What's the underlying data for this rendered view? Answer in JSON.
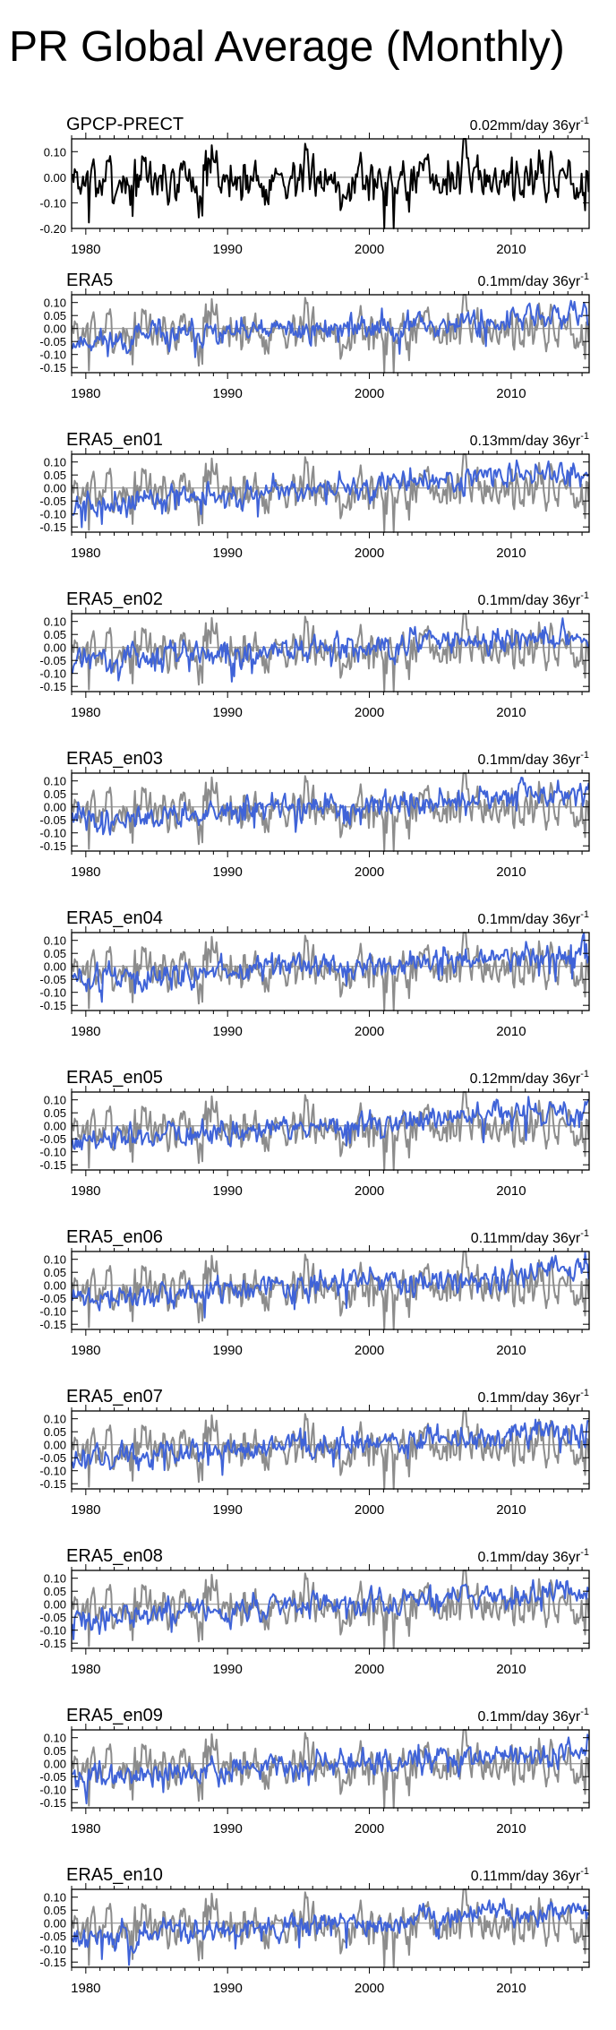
{
  "title": "PR Global Average (Monthly)",
  "colors": {
    "obs": "#000000",
    "reference": "#8c8c8c",
    "model": "#3f63d8",
    "zero_line": "#888888",
    "axis": "#000000"
  },
  "chart_data": [
    {
      "type": "line",
      "panel_label": "GPCP-PRECT",
      "trend_label": "0.02mm/day 36yr",
      "trend_unit_superscript": "-1",
      "x_range": [
        1979,
        2015.5
      ],
      "x_ticks": [
        1980,
        1990,
        2000,
        2010
      ],
      "y_range": [
        -0.2,
        0.15
      ],
      "y_ticks": [
        -0.2,
        -0.1,
        0.0,
        0.1
      ],
      "y_tick_labels": [
        "-0.20",
        "-0.10",
        "0.00",
        "0.10"
      ],
      "series": [
        {
          "name": "GPCP-PRECT",
          "role": "obs",
          "trend_per_36yr": 0.02,
          "amplitude": 0.055,
          "seed": 7
        }
      ]
    },
    {
      "type": "line",
      "panel_label": "ERA5",
      "trend_label": "0.1mm/day 36yr",
      "trend_unit_superscript": "-1",
      "x_range": [
        1979,
        2015.5
      ],
      "x_ticks": [
        1980,
        1990,
        2000,
        2010
      ],
      "y_range": [
        -0.17,
        0.13
      ],
      "y_ticks": [
        -0.15,
        -0.1,
        -0.05,
        0.0,
        0.05,
        0.1
      ],
      "y_tick_labels": [
        "-0.15",
        "-0.10",
        "-0.05",
        "0.00",
        "0.05",
        "0.10"
      ],
      "series": [
        {
          "name": "GPCP-PRECT",
          "role": "reference",
          "trend_per_36yr": 0.02,
          "amplitude": 0.05,
          "seed": 7
        },
        {
          "name": "ERA5",
          "role": "model",
          "trend_per_36yr": 0.1,
          "amplitude": 0.028,
          "seed": 11
        }
      ]
    },
    {
      "type": "line",
      "panel_label": "ERA5_en01",
      "trend_label": "0.13mm/day 36yr",
      "trend_unit_superscript": "-1",
      "x_range": [
        1979,
        2015.5
      ],
      "x_ticks": [
        1980,
        1990,
        2000,
        2010
      ],
      "y_range": [
        -0.17,
        0.13
      ],
      "y_ticks": [
        -0.15,
        -0.1,
        -0.05,
        0.0,
        0.05,
        0.1
      ],
      "y_tick_labels": [
        "-0.15",
        "-0.10",
        "-0.05",
        "0.00",
        "0.05",
        "0.10"
      ],
      "series": [
        {
          "name": "GPCP-PRECT",
          "role": "reference",
          "trend_per_36yr": 0.02,
          "amplitude": 0.05,
          "seed": 7
        },
        {
          "name": "ERA5_en01",
          "role": "model",
          "trend_per_36yr": 0.13,
          "amplitude": 0.028,
          "seed": 21
        }
      ]
    },
    {
      "type": "line",
      "panel_label": "ERA5_en02",
      "trend_label": "0.1mm/day 36yr",
      "trend_unit_superscript": "-1",
      "x_range": [
        1979,
        2015.5
      ],
      "x_ticks": [
        1980,
        1990,
        2000,
        2010
      ],
      "y_range": [
        -0.17,
        0.13
      ],
      "y_ticks": [
        -0.15,
        -0.1,
        -0.05,
        0.0,
        0.05,
        0.1
      ],
      "y_tick_labels": [
        "-0.15",
        "-0.10",
        "-0.05",
        "0.00",
        "0.05",
        "0.10"
      ],
      "series": [
        {
          "name": "GPCP-PRECT",
          "role": "reference",
          "trend_per_36yr": 0.02,
          "amplitude": 0.05,
          "seed": 7
        },
        {
          "name": "ERA5_en02",
          "role": "model",
          "trend_per_36yr": 0.1,
          "amplitude": 0.028,
          "seed": 31
        }
      ]
    },
    {
      "type": "line",
      "panel_label": "ERA5_en03",
      "trend_label": "0.1mm/day 36yr",
      "trend_unit_superscript": "-1",
      "x_range": [
        1979,
        2015.5
      ],
      "x_ticks": [
        1980,
        1990,
        2000,
        2010
      ],
      "y_range": [
        -0.17,
        0.13
      ],
      "y_ticks": [
        -0.15,
        -0.1,
        -0.05,
        0.0,
        0.05,
        0.1
      ],
      "y_tick_labels": [
        "-0.15",
        "-0.10",
        "-0.05",
        "0.00",
        "0.05",
        "0.10"
      ],
      "series": [
        {
          "name": "GPCP-PRECT",
          "role": "reference",
          "trend_per_36yr": 0.02,
          "amplitude": 0.05,
          "seed": 7
        },
        {
          "name": "ERA5_en03",
          "role": "model",
          "trend_per_36yr": 0.1,
          "amplitude": 0.028,
          "seed": 41
        }
      ]
    },
    {
      "type": "line",
      "panel_label": "ERA5_en04",
      "trend_label": "0.1mm/day 36yr",
      "trend_unit_superscript": "-1",
      "x_range": [
        1979,
        2015.5
      ],
      "x_ticks": [
        1980,
        1990,
        2000,
        2010
      ],
      "y_range": [
        -0.17,
        0.13
      ],
      "y_ticks": [
        -0.15,
        -0.1,
        -0.05,
        0.0,
        0.05,
        0.1
      ],
      "y_tick_labels": [
        "-0.15",
        "-0.10",
        "-0.05",
        "0.00",
        "0.05",
        "0.10"
      ],
      "series": [
        {
          "name": "GPCP-PRECT",
          "role": "reference",
          "trend_per_36yr": 0.02,
          "amplitude": 0.05,
          "seed": 7
        },
        {
          "name": "ERA5_en04",
          "role": "model",
          "trend_per_36yr": 0.1,
          "amplitude": 0.028,
          "seed": 51
        }
      ]
    },
    {
      "type": "line",
      "panel_label": "ERA5_en05",
      "trend_label": "0.12mm/day 36yr",
      "trend_unit_superscript": "-1",
      "x_range": [
        1979,
        2015.5
      ],
      "x_ticks": [
        1980,
        1990,
        2000,
        2010
      ],
      "y_range": [
        -0.17,
        0.13
      ],
      "y_ticks": [
        -0.15,
        -0.1,
        -0.05,
        0.0,
        0.05,
        0.1
      ],
      "y_tick_labels": [
        "-0.15",
        "-0.10",
        "-0.05",
        "0.00",
        "0.05",
        "0.10"
      ],
      "series": [
        {
          "name": "GPCP-PRECT",
          "role": "reference",
          "trend_per_36yr": 0.02,
          "amplitude": 0.05,
          "seed": 7
        },
        {
          "name": "ERA5_en05",
          "role": "model",
          "trend_per_36yr": 0.12,
          "amplitude": 0.028,
          "seed": 61
        }
      ]
    },
    {
      "type": "line",
      "panel_label": "ERA5_en06",
      "trend_label": "0.11mm/day 36yr",
      "trend_unit_superscript": "-1",
      "x_range": [
        1979,
        2015.5
      ],
      "x_ticks": [
        1980,
        1990,
        2000,
        2010
      ],
      "y_range": [
        -0.17,
        0.13
      ],
      "y_ticks": [
        -0.15,
        -0.1,
        -0.05,
        0.0,
        0.05,
        0.1
      ],
      "y_tick_labels": [
        "-0.15",
        "-0.10",
        "-0.05",
        "0.00",
        "0.05",
        "0.10"
      ],
      "series": [
        {
          "name": "GPCP-PRECT",
          "role": "reference",
          "trend_per_36yr": 0.02,
          "amplitude": 0.05,
          "seed": 7
        },
        {
          "name": "ERA5_en06",
          "role": "model",
          "trend_per_36yr": 0.11,
          "amplitude": 0.028,
          "seed": 71
        }
      ]
    },
    {
      "type": "line",
      "panel_label": "ERA5_en07",
      "trend_label": "0.1mm/day 36yr",
      "trend_unit_superscript": "-1",
      "x_range": [
        1979,
        2015.5
      ],
      "x_ticks": [
        1980,
        1990,
        2000,
        2010
      ],
      "y_range": [
        -0.17,
        0.13
      ],
      "y_ticks": [
        -0.15,
        -0.1,
        -0.05,
        0.0,
        0.05,
        0.1
      ],
      "y_tick_labels": [
        "-0.15",
        "-0.10",
        "-0.05",
        "0.00",
        "0.05",
        "0.10"
      ],
      "series": [
        {
          "name": "GPCP-PRECT",
          "role": "reference",
          "trend_per_36yr": 0.02,
          "amplitude": 0.05,
          "seed": 7
        },
        {
          "name": "ERA5_en07",
          "role": "model",
          "trend_per_36yr": 0.1,
          "amplitude": 0.028,
          "seed": 81
        }
      ]
    },
    {
      "type": "line",
      "panel_label": "ERA5_en08",
      "trend_label": "0.1mm/day 36yr",
      "trend_unit_superscript": "-1",
      "x_range": [
        1979,
        2015.5
      ],
      "x_ticks": [
        1980,
        1990,
        2000,
        2010
      ],
      "y_range": [
        -0.17,
        0.13
      ],
      "y_ticks": [
        -0.15,
        -0.1,
        -0.05,
        0.0,
        0.05,
        0.1
      ],
      "y_tick_labels": [
        "-0.15",
        "-0.10",
        "-0.05",
        "0.00",
        "0.05",
        "0.10"
      ],
      "series": [
        {
          "name": "GPCP-PRECT",
          "role": "reference",
          "trend_per_36yr": 0.02,
          "amplitude": 0.05,
          "seed": 7
        },
        {
          "name": "ERA5_en08",
          "role": "model",
          "trend_per_36yr": 0.1,
          "amplitude": 0.028,
          "seed": 91
        }
      ]
    },
    {
      "type": "line",
      "panel_label": "ERA5_en09",
      "trend_label": "0.1mm/day 36yr",
      "trend_unit_superscript": "-1",
      "x_range": [
        1979,
        2015.5
      ],
      "x_ticks": [
        1980,
        1990,
        2000,
        2010
      ],
      "y_range": [
        -0.17,
        0.13
      ],
      "y_ticks": [
        -0.15,
        -0.1,
        -0.05,
        0.0,
        0.05,
        0.1
      ],
      "y_tick_labels": [
        "-0.15",
        "-0.10",
        "-0.05",
        "0.00",
        "0.05",
        "0.10"
      ],
      "series": [
        {
          "name": "GPCP-PRECT",
          "role": "reference",
          "trend_per_36yr": 0.02,
          "amplitude": 0.05,
          "seed": 7
        },
        {
          "name": "ERA5_en09",
          "role": "model",
          "trend_per_36yr": 0.1,
          "amplitude": 0.028,
          "seed": 101
        }
      ]
    },
    {
      "type": "line",
      "panel_label": "ERA5_en10",
      "trend_label": "0.11mm/day 36yr",
      "trend_unit_superscript": "-1",
      "x_range": [
        1979,
        2015.5
      ],
      "x_ticks": [
        1980,
        1990,
        2000,
        2010
      ],
      "y_range": [
        -0.17,
        0.13
      ],
      "y_ticks": [
        -0.15,
        -0.1,
        -0.05,
        0.0,
        0.05,
        0.1
      ],
      "y_tick_labels": [
        "-0.15",
        "-0.10",
        "-0.05",
        "0.00",
        "0.05",
        "0.10"
      ],
      "series": [
        {
          "name": "GPCP-PRECT",
          "role": "reference",
          "trend_per_36yr": 0.02,
          "amplitude": 0.05,
          "seed": 7
        },
        {
          "name": "ERA5_en10",
          "role": "model",
          "trend_per_36yr": 0.11,
          "amplitude": 0.028,
          "seed": 111
        }
      ]
    }
  ]
}
